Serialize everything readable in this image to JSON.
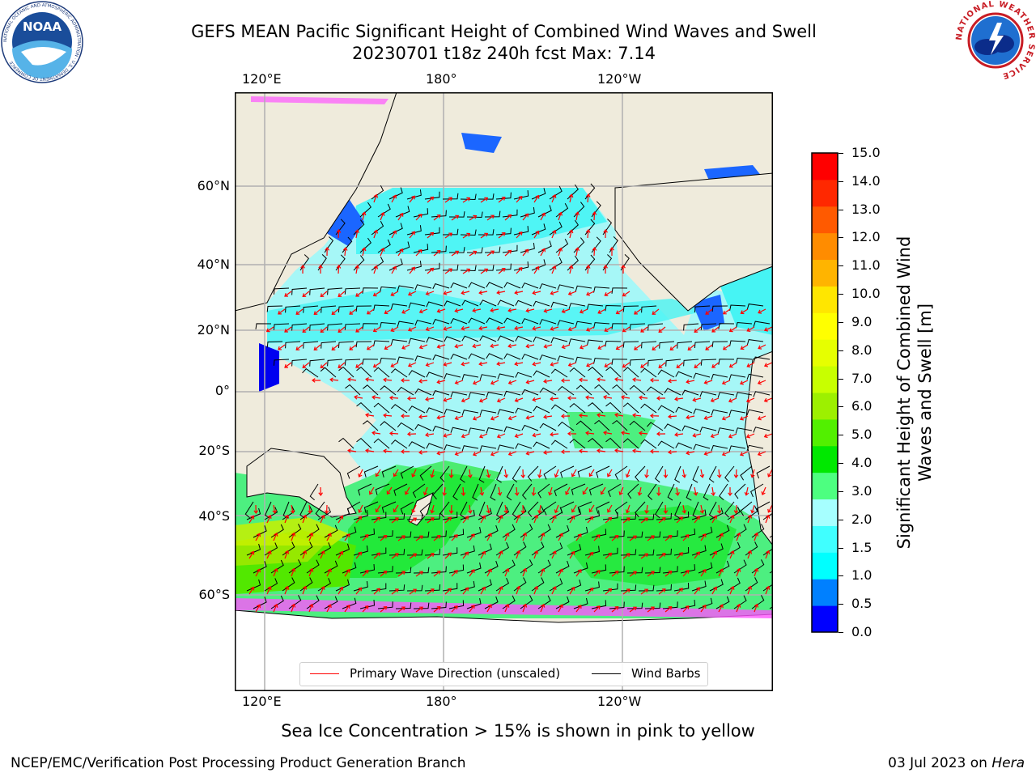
{
  "title": {
    "line1": "GEFS MEAN Pacific Significant Height of Combined Wind Waves and Swell",
    "line2": "20230701 t18z 240h fcst   Max: 7.14"
  },
  "map": {
    "lon_labels": [
      "120°E",
      "180°",
      "120°W"
    ],
    "lat_labels": [
      "60°N",
      "40°N",
      "20°N",
      "0°",
      "20°S",
      "40°S",
      "60°S"
    ],
    "colors": {
      "land": "#efebdc",
      "ocean_base": "#a6f7f7",
      "barb": "#000000",
      "wave_dir": "#ff0000",
      "ice": "#ff55ff"
    }
  },
  "legend": {
    "wave_dir_label": "Primary Wave Direction (unscaled)",
    "wind_barb_label": "Wind Barbs",
    "wave_dir_color": "#ff0000",
    "wind_barb_color": "#000000"
  },
  "colorbar": {
    "ticks": [
      "15.0",
      "14.0",
      "13.0",
      "12.0",
      "11.0",
      "10.0",
      "9.0",
      "8.0",
      "7.0",
      "6.0",
      "5.0",
      "4.0",
      "3.0",
      "2.0",
      "1.5",
      "1.0",
      "0.5",
      "0.0"
    ],
    "label": "Significant Height of Combined Wind Waves and Swell [m]",
    "colors": [
      "#0000ff",
      "#0080ff",
      "#00ffff",
      "#40ffff",
      "#a6ffff",
      "#4dff80",
      "#00e800",
      "#52f000",
      "#9df000",
      "#c8ff00",
      "#e6ff00",
      "#ffff00",
      "#ffe600",
      "#ffb400",
      "#ff8c00",
      "#ff5a00",
      "#ff2800",
      "#ff0000"
    ]
  },
  "caption": "Sea Ice Concentration > 15% is shown in pink to yellow",
  "footer": {
    "left": "NCEP/EMC/Verification Post Processing Product Generation Branch",
    "right_date": "03 Jul 2023 on ",
    "right_host": "Hera"
  },
  "logos": {
    "noaa": "NOAA",
    "noaa_ring": "NATIONAL OCEANIC AND ATMOSPHERIC ADMINISTRATION · U.S. DEPARTMENT OF COMMERCE",
    "nws_ring": "NATIONAL WEATHER SERVICE"
  }
}
